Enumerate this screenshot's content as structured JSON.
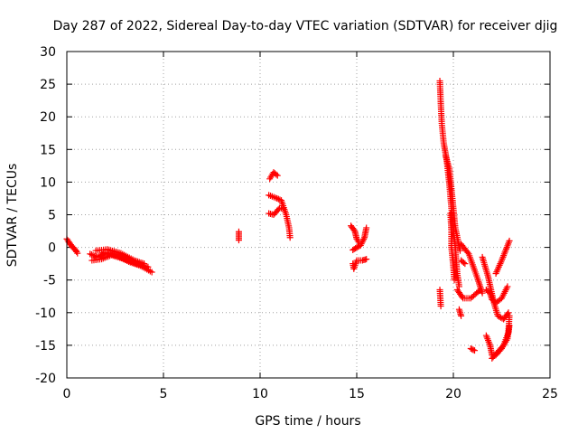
{
  "chart_data": {
    "type": "scatter",
    "title": "Day 287 of 2022, Sidereal Day-to-day VTEC variation (SDTVAR) for receiver djig",
    "xlabel": "GPS time / hours",
    "ylabel": "SDTVAR / TECUs",
    "xlim": [
      0,
      25
    ],
    "ylim": [
      -20,
      30
    ],
    "xticks": [
      0,
      5,
      10,
      15,
      20,
      25
    ],
    "yticks": [
      -20,
      -15,
      -10,
      -5,
      0,
      5,
      10,
      15,
      20,
      25,
      30
    ],
    "grid": true,
    "marker": "+",
    "colors": {
      "marker": "#ff0000",
      "grid": "#a0a0a0",
      "axis": "#000000"
    },
    "series": [
      {
        "name": "SDTVAR",
        "tracks": [
          [
            [
              0.0,
              1.3
            ],
            [
              0.2,
              0.4
            ],
            [
              0.4,
              -0.2
            ],
            [
              0.55,
              -0.9
            ]
          ],
          [
            [
              0.1,
              0.8
            ],
            [
              0.3,
              0.0
            ],
            [
              0.5,
              -0.6
            ]
          ],
          [
            [
              1.2,
              -1.0
            ],
            [
              1.6,
              -1.5
            ],
            [
              2.0,
              -0.8
            ],
            [
              2.6,
              -1.3
            ],
            [
              3.2,
              -2.2
            ],
            [
              3.8,
              -2.8
            ],
            [
              4.4,
              -3.8
            ]
          ],
          [
            [
              1.3,
              -2.0
            ],
            [
              1.8,
              -1.8
            ],
            [
              2.3,
              -1.2
            ],
            [
              3.0,
              -1.8
            ],
            [
              3.6,
              -2.5
            ],
            [
              4.2,
              -3.0
            ]
          ],
          [
            [
              1.5,
              -0.5
            ],
            [
              2.1,
              -0.3
            ],
            [
              2.8,
              -0.9
            ],
            [
              3.5,
              -2.0
            ],
            [
              4.0,
              -2.5
            ]
          ],
          [
            [
              8.9,
              2.4
            ],
            [
              8.9,
              1.1
            ]
          ],
          [
            [
              10.5,
              10.5
            ],
            [
              10.7,
              11.5
            ],
            [
              10.9,
              11.0
            ]
          ],
          [
            [
              10.45,
              5.2
            ],
            [
              10.7,
              5.0
            ],
            [
              11.0,
              6.0
            ],
            [
              11.2,
              6.0
            ]
          ],
          [
            [
              10.45,
              8.0
            ],
            [
              10.8,
              7.6
            ],
            [
              11.1,
              7.2
            ],
            [
              11.35,
              5.0
            ],
            [
              11.5,
              3.0
            ],
            [
              11.55,
              1.5
            ]
          ],
          [
            [
              14.7,
              3.3
            ],
            [
              14.9,
              2.5
            ],
            [
              15.0,
              1.3
            ],
            [
              15.1,
              0.8
            ]
          ],
          [
            [
              14.8,
              -2.5
            ],
            [
              14.85,
              -3.3
            ],
            [
              15.0,
              -2.0
            ],
            [
              15.3,
              -2.0
            ],
            [
              15.5,
              -1.8
            ]
          ],
          [
            [
              14.8,
              -0.4
            ],
            [
              15.0,
              0.0
            ],
            [
              15.2,
              0.3
            ],
            [
              15.4,
              1.5
            ],
            [
              15.5,
              3.0
            ]
          ],
          [
            [
              19.3,
              25.5
            ],
            [
              19.35,
              22.0
            ],
            [
              19.4,
              19.0
            ],
            [
              19.5,
              16.0
            ],
            [
              19.65,
              13.5
            ],
            [
              19.8,
              9.5
            ],
            [
              19.9,
              6.0
            ],
            [
              20.1,
              0.0
            ],
            [
              20.2,
              -4.0
            ],
            [
              20.3,
              -6.0
            ]
          ],
          [
            [
              19.6,
              14.0
            ],
            [
              19.8,
              12.0
            ],
            [
              20.0,
              6.0
            ],
            [
              20.1,
              3.0
            ],
            [
              20.35,
              -0.5
            ]
          ],
          [
            [
              19.85,
              5.2
            ],
            [
              19.9,
              2.5
            ],
            [
              19.9,
              0.0
            ],
            [
              20.0,
              -3.0
            ],
            [
              20.05,
              -5.0
            ]
          ],
          [
            [
              19.3,
              -6.5
            ],
            [
              19.35,
              -9.0
            ]
          ],
          [
            [
              20.2,
              -6.5
            ],
            [
              20.5,
              -7.8
            ],
            [
              20.9,
              -7.8
            ],
            [
              21.2,
              -7.0
            ],
            [
              21.4,
              -6.5
            ]
          ],
          [
            [
              20.4,
              0.5
            ],
            [
              20.8,
              -1.0
            ],
            [
              21.1,
              -3.5
            ],
            [
              21.3,
              -5.2
            ],
            [
              21.5,
              -7.0
            ]
          ],
          [
            [
              20.4,
              -2.0
            ],
            [
              20.6,
              -2.5
            ]
          ],
          [
            [
              20.3,
              -9.5
            ],
            [
              20.4,
              -10.5
            ]
          ],
          [
            [
              20.9,
              -15.5
            ],
            [
              21.1,
              -15.8
            ]
          ],
          [
            [
              21.7,
              -6.5
            ],
            [
              21.9,
              -7.0
            ],
            [
              22.0,
              -8.0
            ],
            [
              22.2,
              -8.5
            ],
            [
              22.5,
              -7.8
            ],
            [
              22.8,
              -6.0
            ]
          ],
          [
            [
              21.7,
              -13.5
            ],
            [
              21.9,
              -15.0
            ],
            [
              22.0,
              -16.5
            ],
            [
              22.2,
              -16.5
            ],
            [
              22.5,
              -15.5
            ],
            [
              22.8,
              -14.0
            ],
            [
              22.9,
              -12.0
            ]
          ],
          [
            [
              22.0,
              -17.0
            ],
            [
              22.3,
              -16.0
            ],
            [
              22.6,
              -15.0
            ],
            [
              22.85,
              -13.0
            ],
            [
              22.9,
              -10.5
            ]
          ],
          [
            [
              21.5,
              -1.5
            ],
            [
              21.8,
              -4.5
            ],
            [
              22.1,
              -8.5
            ],
            [
              22.3,
              -10.5
            ],
            [
              22.6,
              -11.0
            ],
            [
              22.85,
              -10.0
            ]
          ],
          [
            [
              22.2,
              -4.0
            ],
            [
              22.5,
              -2.0
            ],
            [
              22.7,
              -0.5
            ],
            [
              22.9,
              1.0
            ]
          ]
        ]
      }
    ]
  }
}
